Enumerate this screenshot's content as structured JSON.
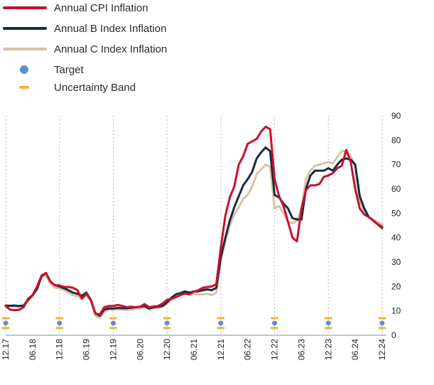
{
  "legend": {
    "cpi": "Annual CPI Inflation",
    "b": "Annual B Index Inflation",
    "c": "Annual C Index Inflation",
    "target": "Target",
    "band": "Uncertainty Band"
  },
  "colors": {
    "cpi": "#c8102e",
    "b": "#1c2b3e",
    "c": "#d8c3a8",
    "target": "#5b8fd0",
    "band": "#f2b13a",
    "grid": "#b9b9b9"
  },
  "chart_data": {
    "type": "line",
    "x_range": [
      0,
      84
    ],
    "ylim": [
      0,
      90
    ],
    "y_ticks": [
      0,
      10,
      20,
      30,
      40,
      50,
      60,
      70,
      80,
      90
    ],
    "x_ticks": [
      {
        "pos": 0,
        "label": "12.17"
      },
      {
        "pos": 6,
        "label": "06.18"
      },
      {
        "pos": 12,
        "label": "12.18"
      },
      {
        "pos": 18,
        "label": "06.19"
      },
      {
        "pos": 24,
        "label": "12.19"
      },
      {
        "pos": 30,
        "label": "06.20"
      },
      {
        "pos": 36,
        "label": "12.20"
      },
      {
        "pos": 42,
        "label": "06.21"
      },
      {
        "pos": 48,
        "label": "12.21"
      },
      {
        "pos": 54,
        "label": "06.22"
      },
      {
        "pos": 60,
        "label": "12.22"
      },
      {
        "pos": 66,
        "label": "06.23"
      },
      {
        "pos": 72,
        "label": "12.23"
      },
      {
        "pos": 78,
        "label": "06.24"
      },
      {
        "pos": 84,
        "label": "12.24"
      }
    ],
    "gridlines": [
      0,
      12,
      24,
      36,
      48,
      60,
      72,
      84
    ],
    "target": {
      "x": [
        0,
        12,
        24,
        36,
        48,
        60,
        72,
        84
      ],
      "value": 5,
      "band_low": 3,
      "band_high": 7
    },
    "series": [
      {
        "key": "cpi",
        "name": "Annual CPI Inflation",
        "x": [
          0,
          1,
          2,
          3,
          4,
          5,
          6,
          7,
          8,
          9,
          10,
          11,
          12,
          13,
          14,
          15,
          16,
          17,
          18,
          19,
          20,
          21,
          22,
          23,
          24,
          25,
          26,
          27,
          28,
          29,
          30,
          31,
          32,
          33,
          34,
          35,
          36,
          37,
          38,
          39,
          40,
          41,
          42,
          43,
          44,
          45,
          46,
          47,
          48,
          49,
          50,
          51,
          52,
          53,
          54,
          55,
          56,
          57,
          58,
          59,
          60,
          61,
          62,
          63,
          64,
          65,
          66,
          67,
          68,
          69,
          70,
          71,
          72,
          73,
          74,
          75,
          76,
          77,
          78,
          79,
          80,
          81,
          82,
          83,
          84
        ],
        "y": [
          12,
          10.5,
          10.3,
          10.4,
          11.5,
          15,
          16.5,
          20,
          24.5,
          25.5,
          22,
          20.5,
          20.5,
          19.8,
          19.8,
          19.5,
          18.5,
          15,
          17,
          14.5,
          9,
          8.5,
          11.5,
          12,
          12,
          12.4,
          12.1,
          11.5,
          11.7,
          11.5,
          11.7,
          12.8,
          11.5,
          11.8,
          12,
          13,
          14.5,
          15,
          15.7,
          16.5,
          17.1,
          16.8,
          17.9,
          18.5,
          19.5,
          19.8,
          20,
          21,
          36,
          49,
          56.5,
          61,
          70,
          73.5,
          78.5,
          79.5,
          80.5,
          83.5,
          85.5,
          84.5,
          64,
          57,
          53,
          46.5,
          40,
          38.5,
          52,
          59.5,
          61.5,
          61.5,
          62,
          65,
          65.5,
          66.5,
          68.5,
          69.5,
          76,
          71,
          60,
          52,
          49.5,
          48.5,
          47,
          45.5,
          44.5
        ]
      },
      {
        "key": "b",
        "name": "Annual B Index Inflation",
        "x": [
          0,
          1,
          2,
          3,
          4,
          5,
          6,
          7,
          8,
          9,
          10,
          11,
          12,
          13,
          14,
          15,
          16,
          17,
          18,
          19,
          20,
          21,
          22,
          23,
          24,
          25,
          26,
          27,
          28,
          29,
          30,
          31,
          32,
          33,
          34,
          35,
          36,
          37,
          38,
          39,
          40,
          41,
          42,
          43,
          44,
          45,
          46,
          47,
          48,
          49,
          50,
          51,
          52,
          53,
          54,
          55,
          56,
          57,
          58,
          59,
          60,
          61,
          62,
          63,
          64,
          65,
          66,
          67,
          68,
          69,
          70,
          71,
          72,
          73,
          74,
          75,
          76,
          77,
          78,
          79,
          80,
          81,
          82,
          83,
          84
        ],
        "y": [
          12.2,
          12.1,
          12.2,
          12,
          12.2,
          14.5,
          16.5,
          19,
          24.2,
          25.5,
          22,
          20.5,
          20,
          19.3,
          18.5,
          17.5,
          17,
          16.2,
          17.5,
          14.5,
          9,
          8,
          10.5,
          11,
          11,
          11.2,
          11.1,
          11.1,
          11.3,
          11.5,
          11.7,
          12,
          11,
          11.5,
          11.7,
          12,
          13.5,
          15.5,
          16.8,
          17.3,
          18,
          17.5,
          18,
          18,
          18.5,
          18.8,
          18.5,
          19.5,
          32,
          40,
          47,
          52.5,
          57,
          61.5,
          64,
          67,
          72.5,
          75,
          77,
          75.5,
          57.5,
          56.5,
          54,
          52,
          48,
          47.5,
          47.5,
          60,
          65.5,
          67.5,
          67.5,
          67.5,
          68.5,
          67.5,
          70,
          72,
          72.5,
          72,
          70,
          57,
          52,
          48.5,
          47,
          45.5,
          44
        ]
      },
      {
        "key": "c",
        "name": "Annual C Index Inflation",
        "x": [
          0,
          1,
          2,
          3,
          4,
          5,
          6,
          7,
          8,
          9,
          10,
          11,
          12,
          13,
          14,
          15,
          16,
          17,
          18,
          19,
          20,
          21,
          22,
          23,
          24,
          25,
          26,
          27,
          28,
          29,
          30,
          31,
          32,
          33,
          34,
          35,
          36,
          37,
          38,
          39,
          40,
          41,
          42,
          43,
          44,
          45,
          46,
          47,
          48,
          49,
          50,
          51,
          52,
          53,
          54,
          55,
          56,
          57,
          58,
          59,
          60,
          61,
          62,
          63,
          64,
          65,
          66,
          67,
          68,
          69,
          70,
          71,
          72,
          73,
          74,
          75,
          76,
          77,
          78,
          79,
          80,
          81,
          82,
          83,
          84
        ],
        "y": [
          12,
          12,
          11.8,
          11.5,
          11.8,
          14,
          16,
          19,
          24,
          24.5,
          21,
          19.5,
          19.3,
          18.5,
          17.5,
          16.5,
          16,
          15,
          16.5,
          14,
          8,
          7,
          9.5,
          10.5,
          10.5,
          10.5,
          10.6,
          10.4,
          10.5,
          10.8,
          11,
          11.5,
          10.5,
          11,
          11.2,
          11.8,
          13,
          14.5,
          15.5,
          16.5,
          17.5,
          16.5,
          17,
          16.7,
          16.8,
          17,
          16.5,
          17.5,
          31,
          38,
          45,
          49.5,
          52.5,
          56,
          57.5,
          61,
          66,
          68,
          70,
          69,
          52,
          53,
          50,
          46.5,
          46,
          47,
          52,
          64,
          67.5,
          69.5,
          70,
          70.5,
          71,
          70.5,
          73,
          75.5,
          75.5,
          73.5,
          69,
          55,
          51,
          48.5,
          47.5,
          46.5,
          45.5
        ]
      }
    ]
  }
}
